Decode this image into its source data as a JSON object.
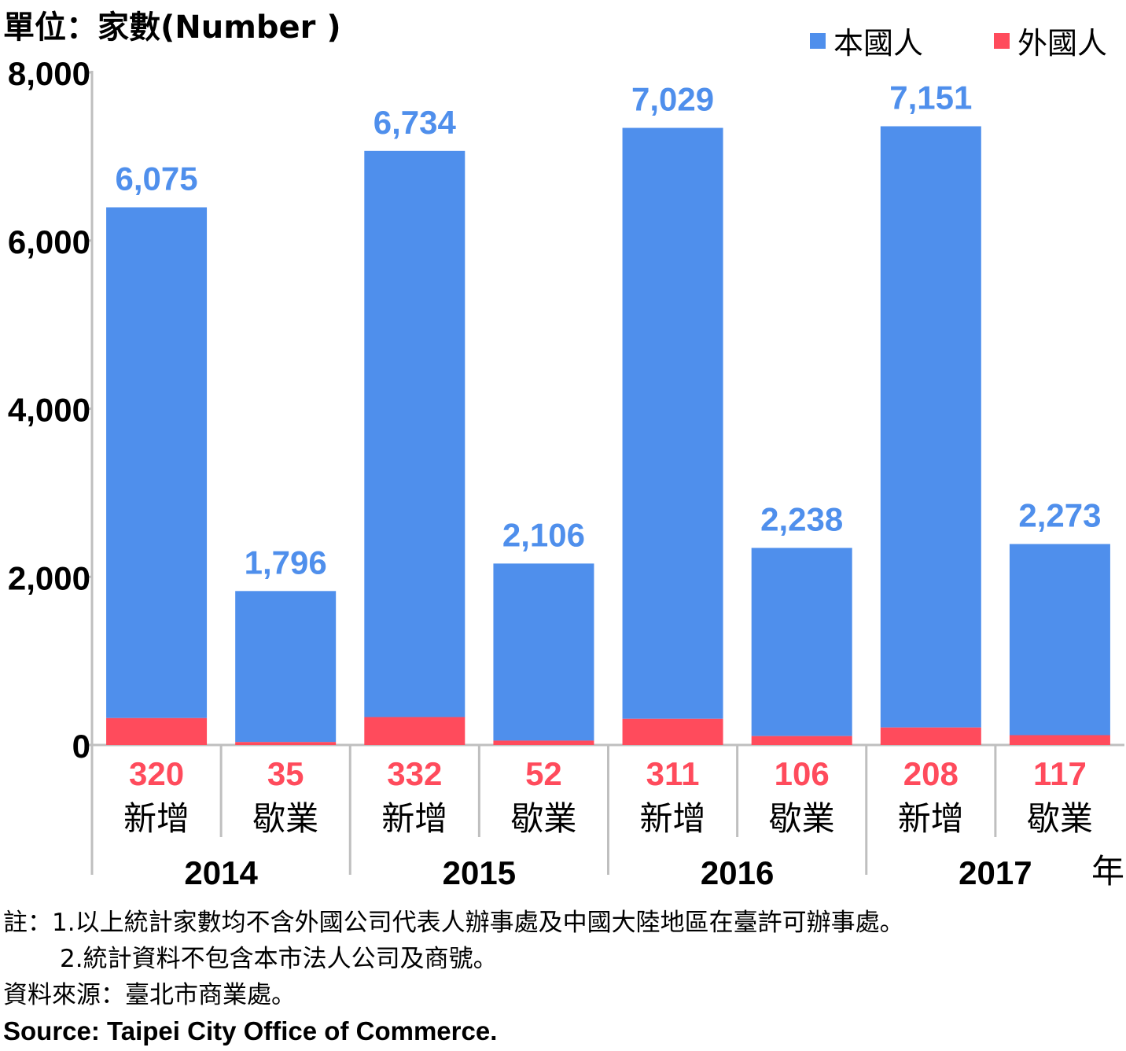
{
  "unit_label": "單位：家數(Number )",
  "year_suffix": "年",
  "legend": [
    {
      "label": "本國人",
      "color": "#4f8fec"
    },
    {
      "label": "外國人",
      "color": "#ff4b5c"
    }
  ],
  "chart_data": {
    "type": "bar",
    "stacked": true,
    "groups": [
      "2014",
      "2015",
      "2016",
      "2017"
    ],
    "categories": [
      "新增",
      "歇業",
      "新增",
      "歇業",
      "新增",
      "歇業",
      "新增",
      "歇業"
    ],
    "series": [
      {
        "name": "外國人",
        "color": "#ff4b5c",
        "values": [
          320,
          35,
          332,
          52,
          311,
          106,
          208,
          117
        ]
      },
      {
        "name": "本國人",
        "color": "#4f8fec",
        "values": [
          6075,
          1796,
          6734,
          2106,
          7029,
          2238,
          7151,
          2273
        ]
      }
    ],
    "ylim": [
      0,
      8000
    ],
    "yticks": [
      "0",
      "2,000",
      "4,000",
      "6,000",
      "8,000"
    ],
    "top_labels": [
      "6,075",
      "1,796",
      "6,734",
      "2,106",
      "7,029",
      "2,238",
      "7,151",
      "2,273"
    ],
    "bottom_labels": [
      "320",
      "35",
      "332",
      "52",
      "311",
      "106",
      "208",
      "117"
    ],
    "grid": false,
    "legend_position": "top-right"
  },
  "notes": {
    "line1": "註：1.以上統計家數均不含外國公司代表人辦事處及中國大陸地區在臺許可辦事處。",
    "line2": "2.統計資料不包含本市法人公司及商號。",
    "source_zh": "資料來源：臺北市商業處。",
    "source_en": "Source: Taipei City Office of Commerce."
  }
}
